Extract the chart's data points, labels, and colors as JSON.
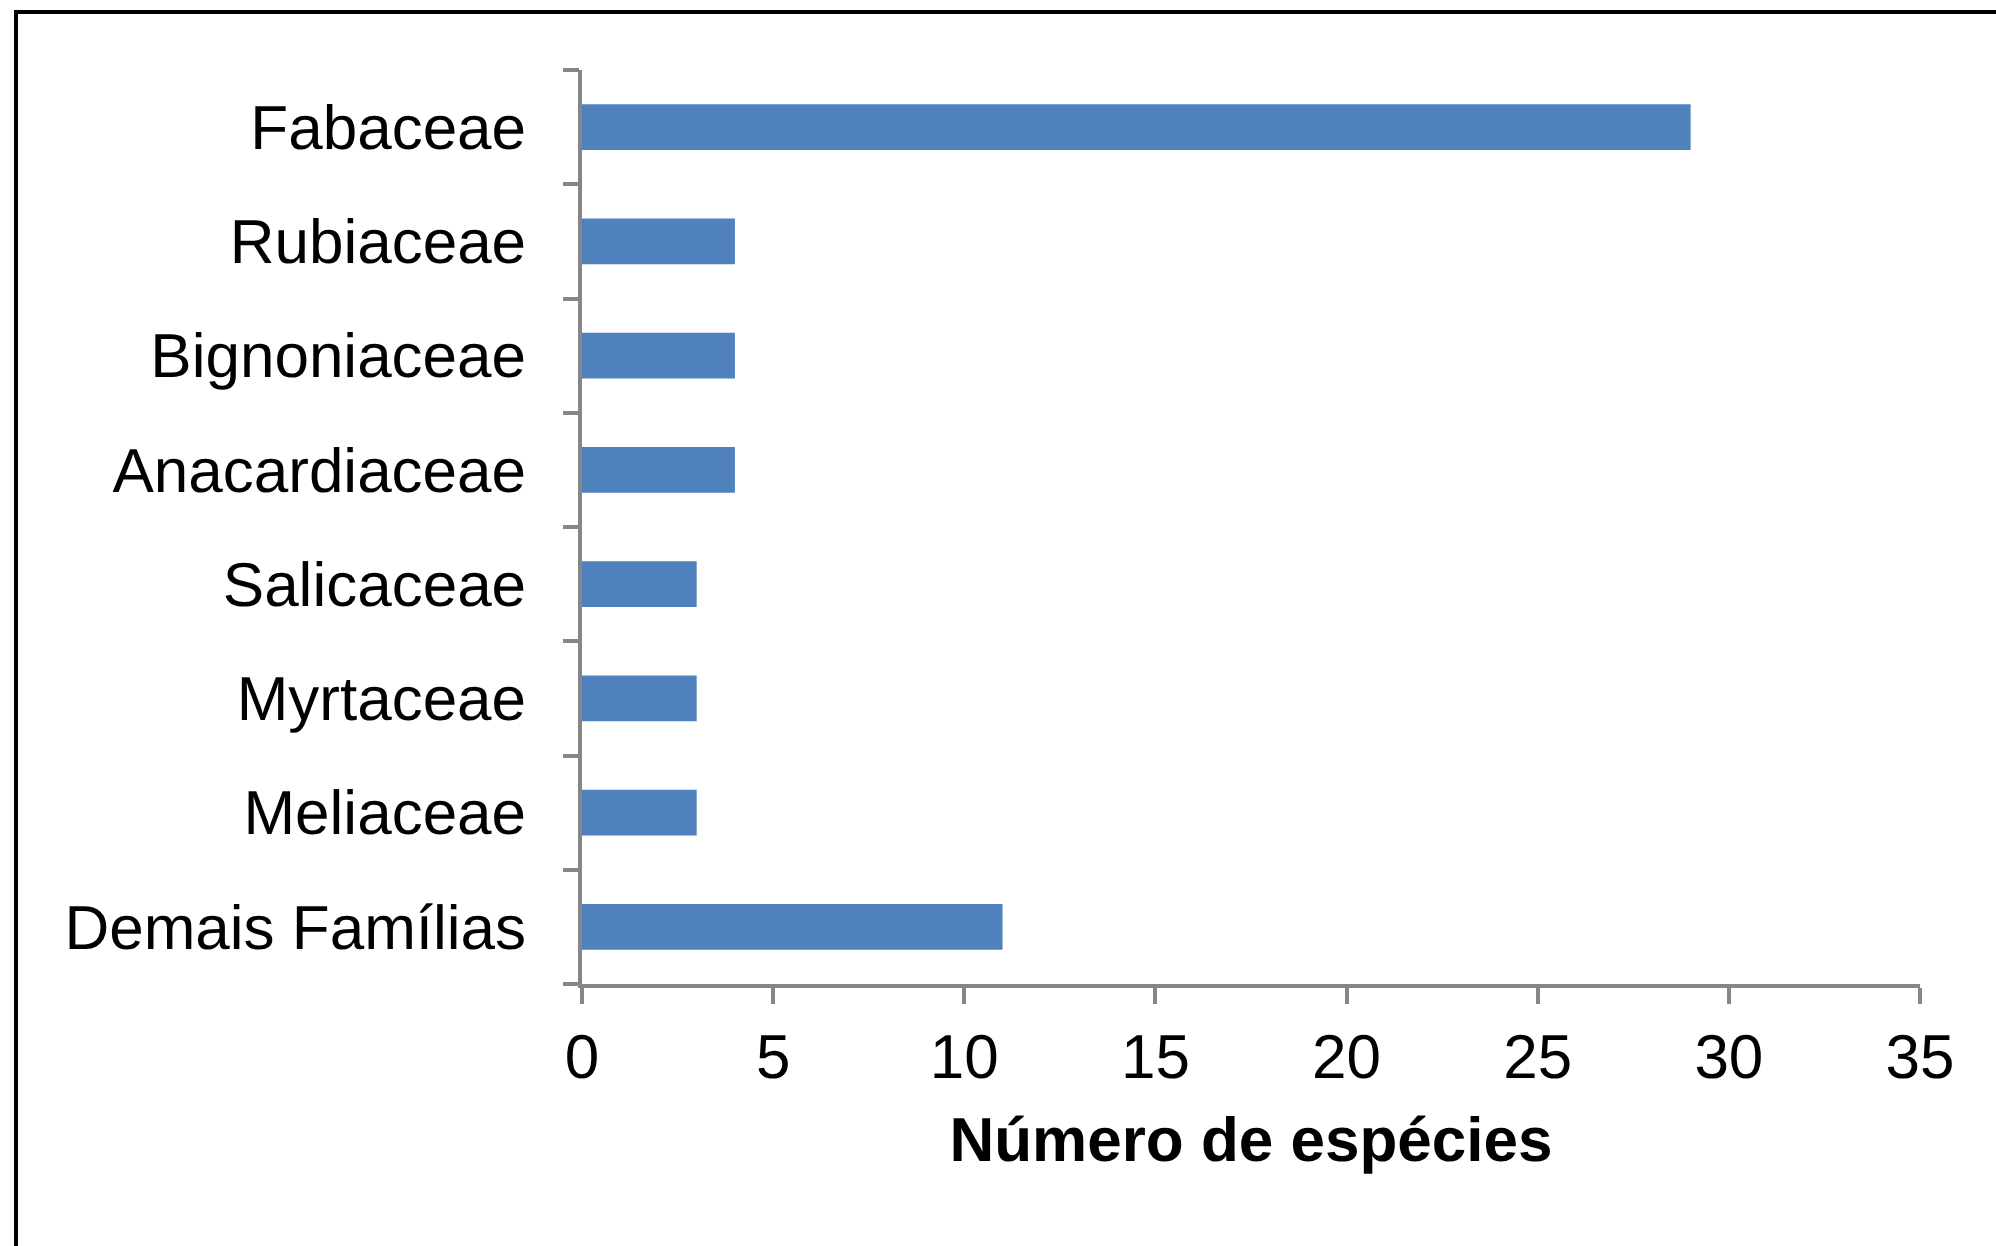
{
  "chart_data": {
    "type": "bar",
    "orientation": "horizontal",
    "categories": [
      "Fabaceae",
      "Rubiaceae",
      "Bignoniaceae",
      "Anacardiaceae",
      "Salicaceae",
      "Myrtaceae",
      "Meliaceae",
      "Demais Famílias"
    ],
    "values": [
      29,
      4,
      4,
      4,
      3,
      3,
      3,
      11
    ],
    "color": "#4f81bd",
    "xlabel": "Número de espécies",
    "xlim": [
      0,
      35
    ],
    "xticks": [
      0,
      5,
      10,
      15,
      20,
      25,
      30,
      35
    ]
  }
}
